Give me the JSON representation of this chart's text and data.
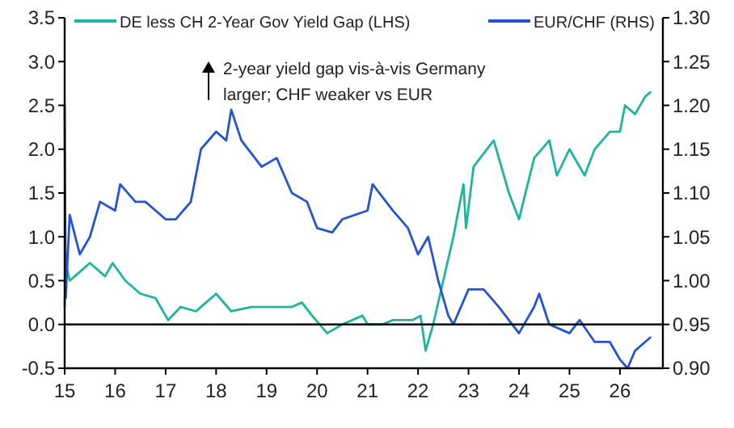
{
  "chart_data": {
    "type": "line",
    "legend": "top",
    "xlim": [
      15,
      26.85
    ],
    "xticks": [
      15,
      16,
      17,
      18,
      19,
      20,
      21,
      22,
      23,
      24,
      25,
      26
    ],
    "ylim": [
      -0.5,
      3.5
    ],
    "yticks": [
      {
        "value": -0.5,
        "label": "-0.5"
      },
      {
        "value": 0,
        "label": "0.0"
      },
      {
        "value": 0.5,
        "label": "0.5"
      },
      {
        "value": 1,
        "label": "1.0"
      },
      {
        "value": 1.5,
        "label": "1.5"
      },
      {
        "value": 2,
        "label": "2.0"
      },
      {
        "value": 2.5,
        "label": "2.5"
      },
      {
        "value": 3,
        "label": "3.0"
      },
      {
        "value": 3.5,
        "label": "3.5"
      }
    ],
    "y2lim": [
      0.9,
      1.3
    ],
    "y2ticks": [
      {
        "value": 0.9,
        "label": "0.90"
      },
      {
        "value": 0.95,
        "label": "0.95"
      },
      {
        "value": 1,
        "label": "1.00"
      },
      {
        "value": 1.05,
        "label": "1.05"
      },
      {
        "value": 1.1,
        "label": "1.10"
      },
      {
        "value": 1.15,
        "label": "1.15"
      },
      {
        "value": 1.2,
        "label": "1.20"
      },
      {
        "value": 1.25,
        "label": "1.25"
      },
      {
        "value": 1.3,
        "label": "1.30"
      }
    ],
    "ref_lines": [
      {
        "axis": "y",
        "value": 0,
        "color": "#000000"
      }
    ],
    "annotations": [
      "2-year yield gap vis-à-vis Germany larger; CHF weaker vs EUR"
    ],
    "series": [
      {
        "name": "DE less CH 2-Year Gov Yield Gap (LHS)",
        "color": "#1db5a0",
        "x": [
          15,
          15.02,
          15.1,
          15.3,
          15.5,
          15.8,
          15.95,
          16.2,
          16.5,
          16.8,
          17.05,
          17.3,
          17.6,
          18,
          18.3,
          18.7,
          19,
          19.5,
          19.7,
          19.9,
          20.2,
          20.5,
          20.9,
          21,
          21.3,
          21.5,
          21.9,
          22.05,
          22.15,
          22.3,
          22.5,
          22.7,
          22.9,
          22.95,
          23.1,
          23.5,
          23.8,
          24,
          24.3,
          24.6,
          24.75,
          25,
          25.3,
          25.5,
          25.8,
          26,
          26.1,
          26.3,
          26.5,
          26.6
        ],
        "values": [
          0.2,
          0.7,
          0.5,
          0.6,
          0.7,
          0.55,
          0.7,
          0.5,
          0.35,
          0.3,
          0.05,
          0.2,
          0.15,
          0.35,
          0.15,
          0.2,
          0.2,
          0.2,
          0.25,
          0.1,
          -0.1,
          0,
          0.1,
          0,
          0,
          0.05,
          0.05,
          0.1,
          -0.3,
          0,
          0.5,
          1,
          1.6,
          1.1,
          1.8,
          2.1,
          1.5,
          1.2,
          1.9,
          2.1,
          1.7,
          2,
          1.7,
          2,
          2.2,
          2.2,
          2.5,
          2.4,
          2.6,
          2.65
        ]
      },
      {
        "name": "EUR/CHF (RHS)",
        "color": "#2453d4",
        "axis": "y2",
        "x": [
          15,
          15.02,
          15.1,
          15.3,
          15.5,
          15.7,
          16,
          16.1,
          16.4,
          16.6,
          17,
          17.2,
          17.5,
          17.7,
          18,
          18.2,
          18.3,
          18.5,
          18.9,
          19.2,
          19.5,
          19.8,
          20,
          20.3,
          20.5,
          21,
          21.1,
          21.5,
          21.8,
          22,
          22.2,
          22.4,
          22.6,
          22.7,
          23,
          23.3,
          23.6,
          24,
          24.3,
          24.4,
          24.6,
          25,
          25.2,
          25.5,
          25.8,
          26,
          26.15,
          26.3,
          26.6
        ],
        "values": [
          1.2,
          0.98,
          1.075,
          1.03,
          1.05,
          1.09,
          1.08,
          1.11,
          1.09,
          1.09,
          1.07,
          1.07,
          1.09,
          1.15,
          1.17,
          1.16,
          1.195,
          1.16,
          1.13,
          1.14,
          1.1,
          1.09,
          1.06,
          1.055,
          1.07,
          1.08,
          1.11,
          1.08,
          1.06,
          1.03,
          1.05,
          1,
          0.96,
          0.95,
          0.99,
          0.99,
          0.97,
          0.94,
          0.97,
          0.985,
          0.95,
          0.94,
          0.955,
          0.93,
          0.93,
          0.91,
          0.9,
          0.92,
          0.935
        ]
      }
    ]
  }
}
